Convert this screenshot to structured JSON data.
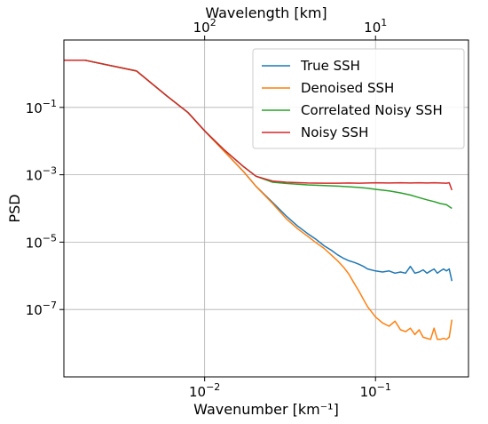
{
  "chart_data": {
    "type": "line",
    "x_scale": "log",
    "y_scale": "log",
    "xlabel": "Wavenumber [km⁻¹]",
    "ylabel": "PSD",
    "top_xlabel": "Wavelength [km]",
    "xlim": [
      0.0015,
      0.35
    ],
    "ylim": [
      1e-09,
      10
    ],
    "grid": true,
    "legend_position": "top-right",
    "x_ticks": [
      {
        "value": 0.01,
        "base": "10",
        "exp": "−2"
      },
      {
        "value": 0.1,
        "base": "10",
        "exp": "−1"
      }
    ],
    "y_ticks": [
      {
        "value": 0.1,
        "base": "10",
        "exp": "−1"
      },
      {
        "value": 0.001,
        "base": "10",
        "exp": "−3"
      },
      {
        "value": 1e-05,
        "base": "10",
        "exp": "−5"
      },
      {
        "value": 1e-07,
        "base": "10",
        "exp": "−7"
      }
    ],
    "top_ticks": [
      {
        "wavelength": 100,
        "base": "10",
        "exp": "2"
      },
      {
        "wavelength": 10,
        "base": "10",
        "exp": "1"
      }
    ],
    "series": [
      {
        "name": "True SSH",
        "color": "#1f77b4",
        "x": [
          0.0015,
          0.002,
          0.004,
          0.006,
          0.008,
          0.01,
          0.013,
          0.017,
          0.02,
          0.025,
          0.03,
          0.035,
          0.04,
          0.045,
          0.05,
          0.055,
          0.06,
          0.065,
          0.07,
          0.075,
          0.08,
          0.085,
          0.09,
          0.1,
          0.11,
          0.12,
          0.13,
          0.14,
          0.15,
          0.16,
          0.17,
          0.18,
          0.19,
          0.2,
          0.21,
          0.22,
          0.23,
          0.24,
          0.25,
          0.26,
          0.27,
          0.28
        ],
        "y": [
          2.5,
          2.5,
          1.2,
          0.22,
          0.07,
          0.02,
          0.005,
          0.0012,
          0.00045,
          0.00015,
          6e-05,
          3e-05,
          1.8e-05,
          1.2e-05,
          7.8e-06,
          5.8e-06,
          4.2e-06,
          3.3e-06,
          2.8e-06,
          2.5e-06,
          2.2e-06,
          1.9e-06,
          1.6e-06,
          1.4e-06,
          1.3e-06,
          1.4e-06,
          1.2e-06,
          1.3e-06,
          1.2e-06,
          1.9e-06,
          1.2e-06,
          1.3e-06,
          1.5e-06,
          1.2e-06,
          1.4e-06,
          1.6e-06,
          1.2e-06,
          1.4e-06,
          1.6e-06,
          1.4e-06,
          1.6e-06,
          7e-07
        ]
      },
      {
        "name": "Denoised SSH",
        "color": "#ff7f0e",
        "x": [
          0.0015,
          0.002,
          0.004,
          0.006,
          0.008,
          0.01,
          0.013,
          0.017,
          0.02,
          0.025,
          0.03,
          0.035,
          0.04,
          0.045,
          0.05,
          0.055,
          0.06,
          0.065,
          0.07,
          0.075,
          0.08,
          0.085,
          0.09,
          0.1,
          0.11,
          0.12,
          0.13,
          0.14,
          0.15,
          0.16,
          0.17,
          0.18,
          0.19,
          0.2,
          0.21,
          0.22,
          0.23,
          0.24,
          0.25,
          0.26,
          0.27,
          0.28
        ],
        "y": [
          2.5,
          2.5,
          1.2,
          0.22,
          0.07,
          0.02,
          0.005,
          0.0012,
          0.00045,
          0.00014,
          5e-05,
          2.5e-05,
          1.5e-05,
          9.5e-06,
          6.5e-06,
          4.2e-06,
          2.8e-06,
          1.8e-06,
          1.1e-06,
          6e-07,
          3.5e-07,
          2e-07,
          1.2e-07,
          6e-08,
          4e-08,
          3.2e-08,
          4.5e-08,
          2.5e-08,
          2.2e-08,
          2.8e-08,
          1.8e-08,
          2.5e-08,
          1.5e-08,
          1.4e-08,
          1.3e-08,
          2.8e-08,
          1.3e-08,
          1.3e-08,
          1.4e-08,
          1.3e-08,
          1.5e-08,
          5e-08
        ]
      },
      {
        "name": "Correlated Noisy SSH",
        "color": "#2ca02c",
        "x": [
          0.0015,
          0.002,
          0.004,
          0.006,
          0.008,
          0.01,
          0.013,
          0.017,
          0.02,
          0.025,
          0.03,
          0.04,
          0.05,
          0.06,
          0.07,
          0.08,
          0.09,
          0.1,
          0.12,
          0.14,
          0.16,
          0.18,
          0.2,
          0.22,
          0.24,
          0.26,
          0.28
        ],
        "y": [
          2.5,
          2.5,
          1.2,
          0.22,
          0.07,
          0.02,
          0.0055,
          0.0017,
          0.0009,
          0.0006,
          0.00055,
          0.0005,
          0.00048,
          0.00046,
          0.00044,
          0.00042,
          0.0004,
          0.00037,
          0.00033,
          0.00029,
          0.00025,
          0.00021,
          0.00018,
          0.00016,
          0.00014,
          0.00013,
          0.0001
        ]
      },
      {
        "name": "Noisy SSH",
        "color": "#d62728",
        "x": [
          0.0015,
          0.002,
          0.004,
          0.006,
          0.008,
          0.01,
          0.013,
          0.017,
          0.02,
          0.025,
          0.03,
          0.04,
          0.05,
          0.06,
          0.07,
          0.08,
          0.09,
          0.1,
          0.12,
          0.14,
          0.16,
          0.18,
          0.2,
          0.22,
          0.24,
          0.26,
          0.27,
          0.28
        ],
        "y": [
          2.5,
          2.5,
          1.2,
          0.22,
          0.07,
          0.02,
          0.0055,
          0.0017,
          0.0009,
          0.00065,
          0.0006,
          0.00057,
          0.00056,
          0.00056,
          0.00057,
          0.00056,
          0.00057,
          0.00058,
          0.00057,
          0.00058,
          0.00057,
          0.00058,
          0.00057,
          0.00058,
          0.00057,
          0.00056,
          0.00058,
          0.00035
        ]
      }
    ]
  }
}
